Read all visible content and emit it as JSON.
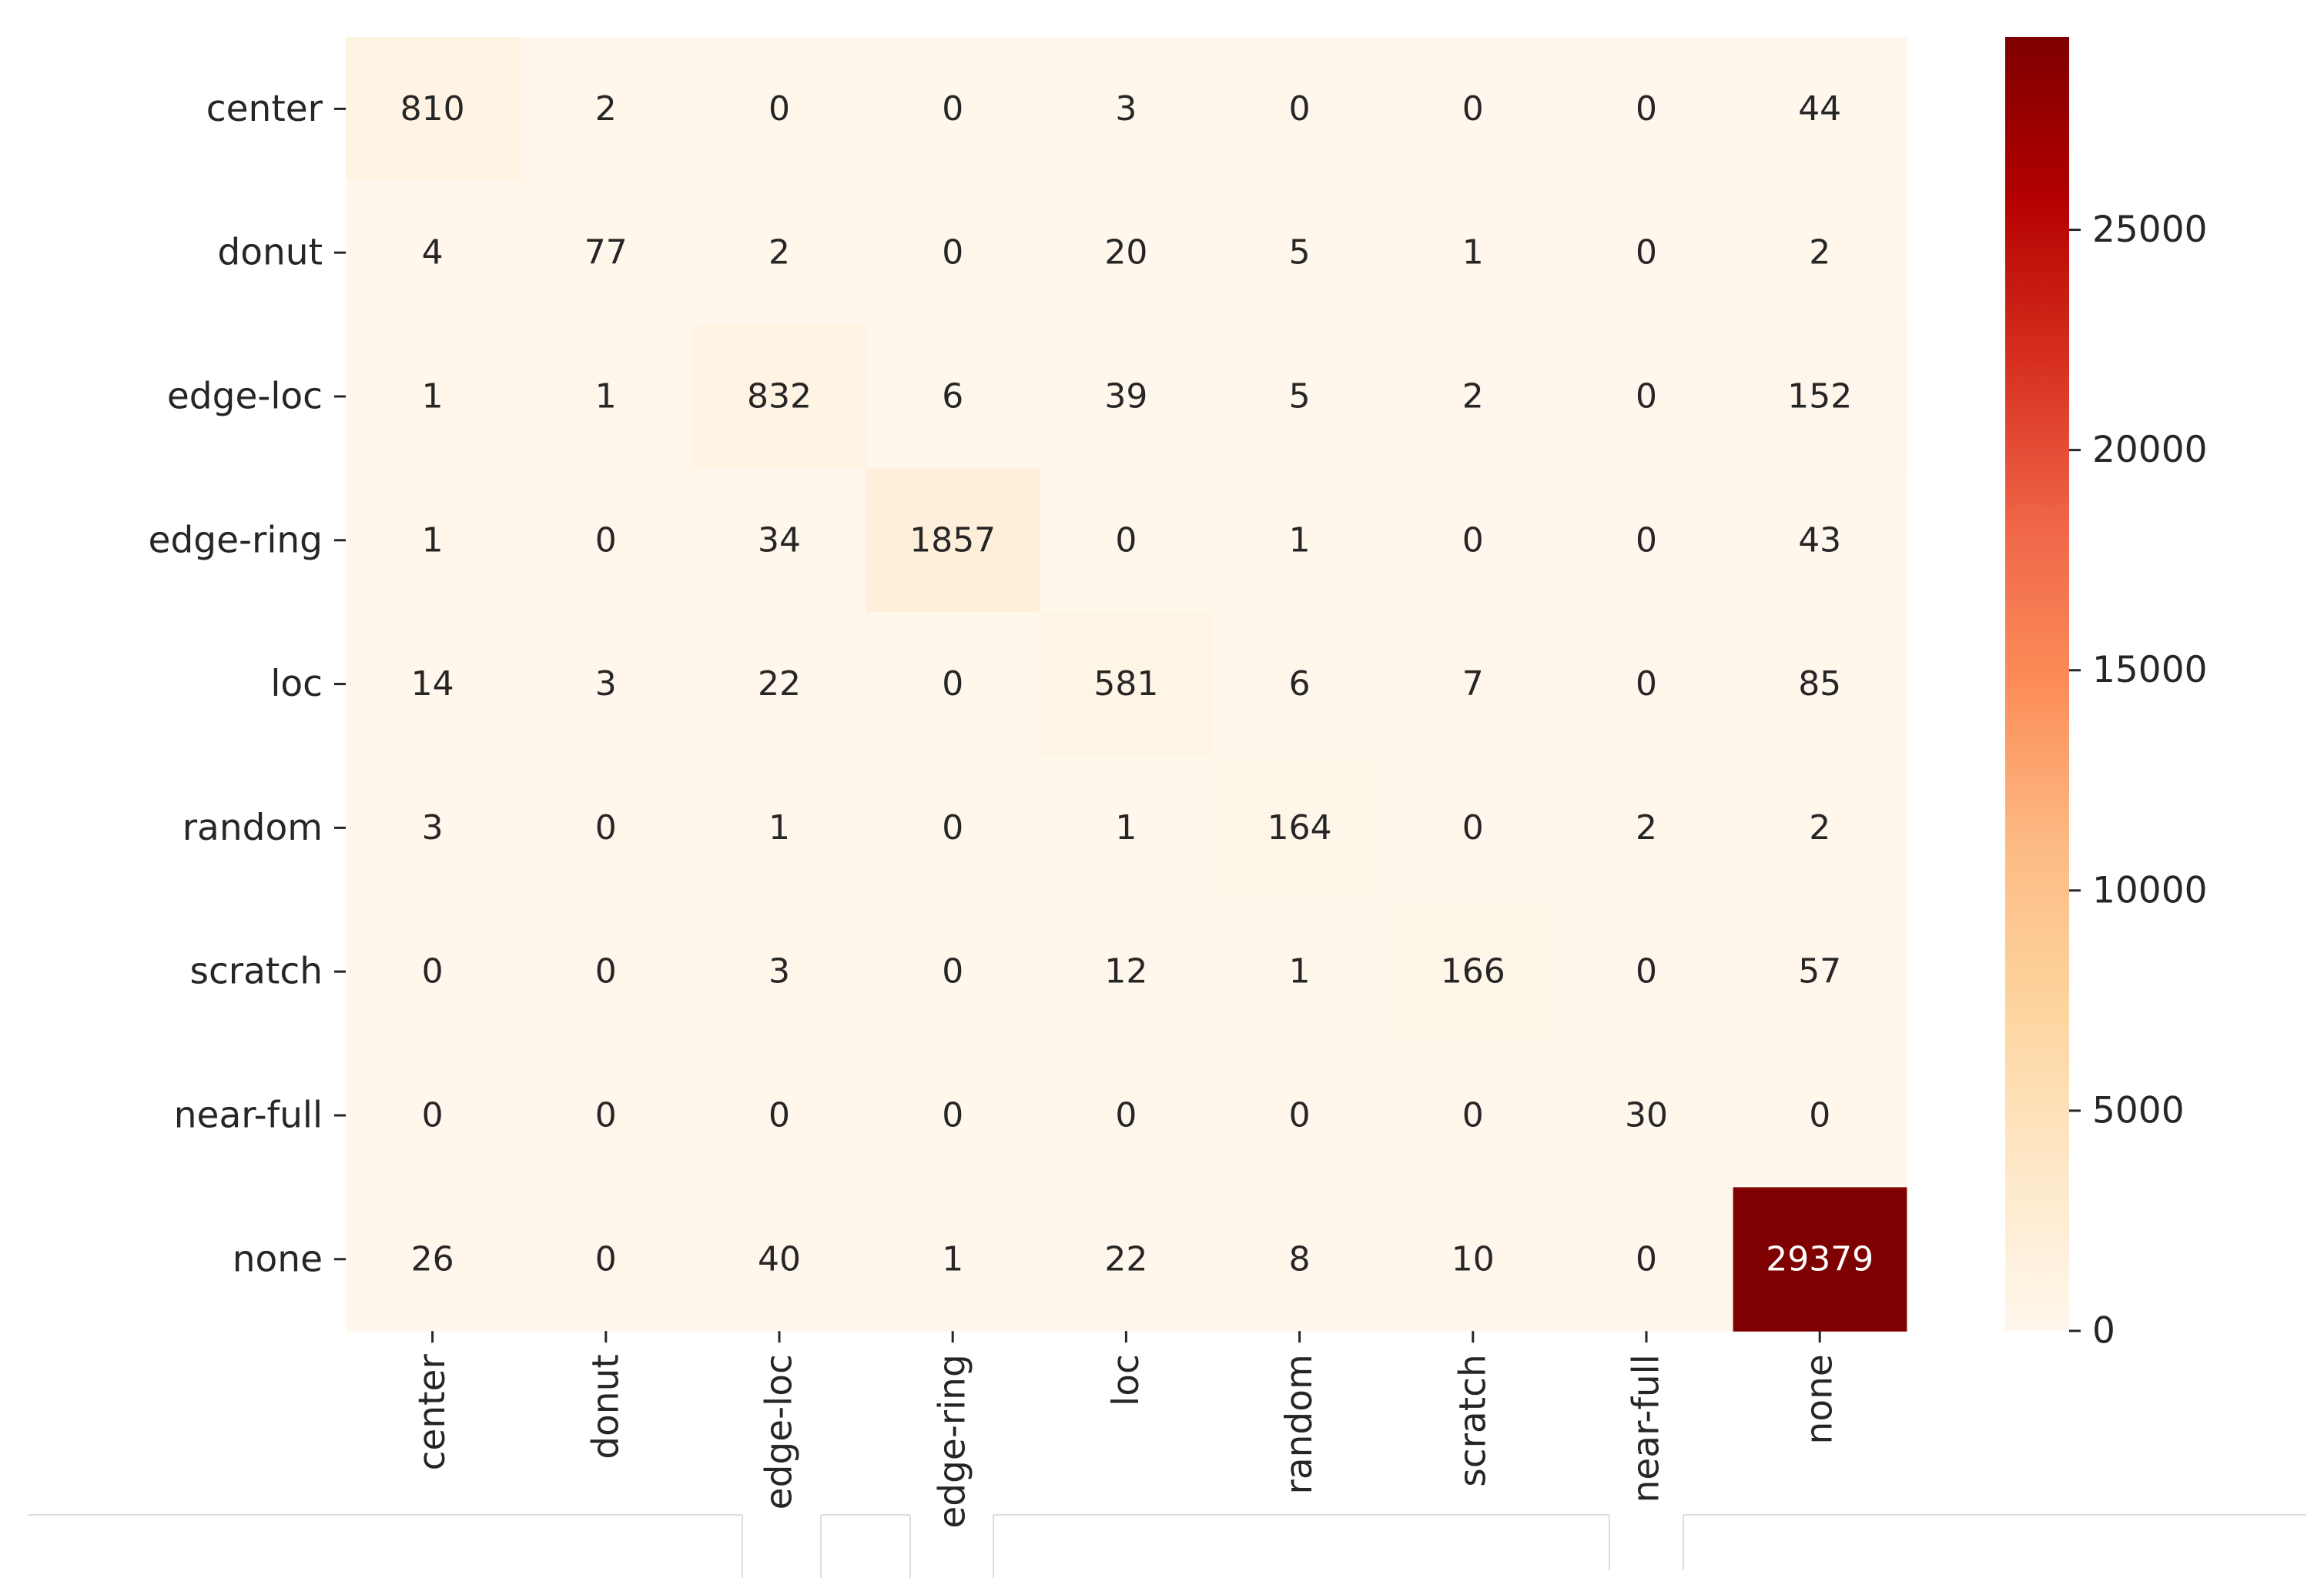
{
  "chart_data": {
    "type": "heatmap",
    "title": "",
    "xlabel": "",
    "ylabel": "",
    "row_labels": [
      "center",
      "donut",
      "edge-loc",
      "edge-ring",
      "loc",
      "random",
      "scratch",
      "near-full",
      "none"
    ],
    "col_labels": [
      "center",
      "donut",
      "edge-loc",
      "edge-ring",
      "loc",
      "random",
      "scratch",
      "near-full",
      "none"
    ],
    "values": [
      [
        810,
        2,
        0,
        0,
        3,
        0,
        0,
        0,
        44
      ],
      [
        4,
        77,
        2,
        0,
        20,
        5,
        1,
        0,
        2
      ],
      [
        1,
        1,
        832,
        6,
        39,
        5,
        2,
        0,
        152
      ],
      [
        1,
        0,
        34,
        1857,
        0,
        1,
        0,
        0,
        43
      ],
      [
        14,
        3,
        22,
        0,
        581,
        6,
        7,
        0,
        85
      ],
      [
        3,
        0,
        1,
        0,
        1,
        164,
        0,
        2,
        2
      ],
      [
        0,
        0,
        3,
        0,
        12,
        1,
        166,
        0,
        57
      ],
      [
        0,
        0,
        0,
        0,
        0,
        0,
        0,
        30,
        0
      ],
      [
        26,
        0,
        40,
        1,
        22,
        8,
        10,
        0,
        29379
      ]
    ],
    "colormap": "OrRd",
    "colorbar": {
      "range": [
        0,
        29379
      ],
      "ticks": [
        0,
        5000,
        10000,
        15000,
        20000,
        25000
      ]
    },
    "annotation_colors": {
      "light_cell": "#262626",
      "dark_cell": "#ffffff"
    }
  }
}
